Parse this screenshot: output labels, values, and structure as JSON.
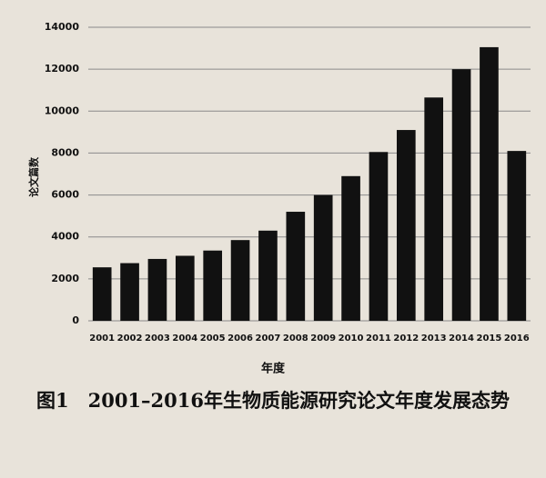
{
  "chart_data": {
    "type": "bar",
    "categories": [
      "2001",
      "2002",
      "2003",
      "2004",
      "2005",
      "2006",
      "2007",
      "2008",
      "2009",
      "2010",
      "2011",
      "2012",
      "2013",
      "2014",
      "2015",
      "2016"
    ],
    "values": [
      2550,
      2750,
      2950,
      3100,
      3350,
      3850,
      4300,
      5200,
      6000,
      6900,
      8050,
      9100,
      10650,
      12000,
      13050,
      8100
    ],
    "color": "#111111",
    "ylabel": "论文篇数",
    "xlabel": "年度",
    "caption": "图1　2001–2016年生物质能源研究论文年度发展态势",
    "ylim": [
      0,
      14000
    ],
    "yticks": [
      0,
      2000,
      4000,
      6000,
      8000,
      10000,
      12000,
      14000
    ],
    "grid": true
  }
}
